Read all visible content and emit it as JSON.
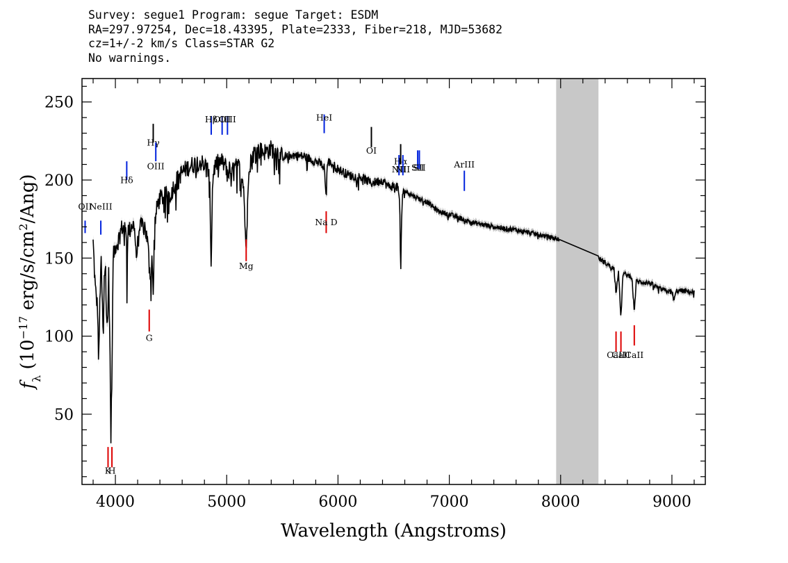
{
  "header": {
    "line1": "Survey: segue1 Program: segue Target: ESDM",
    "line2": "RA=297.97254, Dec=18.43395, Plate=2333, Fiber=218, MJD=53682",
    "line3": "cz=1+/-2 km/s Class=STAR G2",
    "line4": "No warnings."
  },
  "chart_data": {
    "type": "line",
    "xlabel": "Wavelength (Angstroms)",
    "ylabel": "f_λ (10^-17 erg/s/cm^2/Ang)",
    "xlim": [
      3700,
      9300
    ],
    "ylim": [
      5,
      265
    ],
    "x_ticks": [
      4000,
      5000,
      6000,
      7000,
      8000,
      9000
    ],
    "y_ticks": [
      50,
      100,
      150,
      200,
      250
    ],
    "grid": false,
    "masked_region": [
      7960,
      8340
    ],
    "colors": {
      "spectrum": "#000000",
      "error": "#b8b8b8",
      "mask": "#c8c8c8",
      "emission": "#0022dd",
      "absorption": "#dd0000",
      "sky": "#000000"
    },
    "series": [
      {
        "x": [
          3800,
          3820,
          3840,
          3850,
          3860,
          3870,
          3880,
          3890,
          3900,
          3910,
          3920,
          3930,
          3940,
          3950,
          3955,
          3960,
          3965,
          3970,
          3980,
          3990,
          4000,
          4020,
          4040,
          4060,
          4080,
          4100,
          4102,
          4110,
          4130,
          4150,
          4170,
          4190,
          4210,
          4230,
          4260,
          4290,
          4300,
          4310,
          4320,
          4330,
          4340,
          4350,
          4380,
          4400,
          4450,
          4500,
          4550,
          4600,
          4650,
          4700,
          4750,
          4800,
          4840,
          4850,
          4861,
          4870,
          4880,
          4900,
          4950,
          5000,
          5050,
          5100,
          5150,
          5170,
          5175,
          5183,
          5190,
          5200,
          5250,
          5300,
          5350,
          5400,
          5450,
          5500,
          5600,
          5700,
          5800,
          5850,
          5880,
          5890,
          5896,
          5900,
          5910,
          5950,
          6000,
          6100,
          6200,
          6300,
          6400,
          6450,
          6500,
          6540,
          6555,
          6563,
          6570,
          6580,
          6600,
          6700,
          6800,
          6900,
          7000,
          7200,
          7400,
          7600,
          7800,
          7990,
          8340,
          8400,
          8480,
          8498,
          8520,
          8542,
          8560,
          8640,
          8662,
          8680,
          8800,
          8900,
          9000,
          9020,
          9040,
          9100,
          9200
        ],
        "y": [
          160,
          130,
          118,
          80,
          120,
          150,
          128,
          100,
          140,
          145,
          118,
          110,
          140,
          100,
          65,
          35,
          60,
          80,
          150,
          155,
          158,
          160,
          165,
          170,
          168,
          165,
          120,
          168,
          168,
          172,
          170,
          150,
          168,
          170,
          172,
          160,
          150,
          145,
          130,
          155,
          125,
          170,
          185,
          188,
          190,
          192,
          200,
          205,
          208,
          210,
          212,
          210,
          205,
          190,
          142,
          190,
          205,
          210,
          212,
          208,
          205,
          210,
          200,
          162,
          158,
          165,
          195,
          210,
          218,
          219,
          218,
          220,
          218,
          215,
          216,
          215,
          212,
          210,
          208,
          190,
          192,
          205,
          212,
          210,
          207,
          203,
          202,
          198,
          200,
          196,
          196,
          195,
          182,
          138,
          170,
          192,
          193,
          189,
          186,
          180,
          178,
          173,
          170,
          168,
          165,
          162,
          150,
          147,
          143,
          128,
          142,
          111,
          140,
          138,
          116,
          135,
          134,
          130,
          128,
          123,
          129,
          129,
          128
        ],
        "errors": [
          3,
          3,
          3,
          3,
          3,
          3,
          3,
          3,
          3,
          3,
          3,
          3,
          3,
          3,
          3,
          3,
          3,
          3,
          3,
          3,
          2.5,
          2.5,
          2.5,
          2.5,
          2.5,
          2.5,
          2.5,
          2.5,
          2.5,
          2.5,
          2.5,
          2.5,
          2.5,
          2.5,
          2.5,
          2.5,
          2.5,
          2.5,
          2.5,
          2.5,
          2.5,
          2.5,
          2,
          2,
          2,
          2,
          2,
          2,
          2,
          2,
          2,
          2,
          2,
          2,
          2,
          2,
          2,
          2,
          2,
          2,
          2,
          2,
          2,
          2,
          2,
          2,
          2,
          2,
          2,
          2,
          2,
          2,
          2,
          2,
          2,
          2,
          2,
          2,
          2,
          2,
          2,
          2,
          2,
          2,
          2,
          2,
          2,
          2,
          2,
          2,
          2,
          2,
          2,
          2,
          2,
          2,
          2,
          2,
          2,
          2,
          2,
          2,
          2,
          2,
          2,
          2,
          2,
          2,
          2,
          2,
          2,
          2,
          2,
          2,
          2,
          2,
          2,
          2,
          2,
          2,
          2,
          2,
          2
        ]
      }
    ],
    "lines": [
      {
        "label": "OII",
        "x": 3728,
        "type": "emission",
        "text_y": 181,
        "y1": 174,
        "y2": 166
      },
      {
        "label": "NeIII",
        "x": 3869,
        "type": "emission",
        "text_y": 181,
        "y1": 174,
        "y2": 165
      },
      {
        "label": "Hδ",
        "x": 4102,
        "type": "emission",
        "text_y": 198,
        "y1": 212,
        "y2": 200
      },
      {
        "label": "Hγ",
        "x": 4340,
        "type": "emission",
        "text_y": 222,
        "y1": 236,
        "y2": 224,
        "color": "#000000"
      },
      {
        "label": "OIII",
        "x": 4363,
        "type": "emission",
        "text_y": 207,
        "y1": 224,
        "y2": 212
      },
      {
        "label": "Hβ",
        "x": 4861,
        "type": "emission",
        "text_y": 237,
        "y1": 241,
        "y2": 229
      },
      {
        "label": "OIII",
        "x": 4959,
        "type": "emission",
        "text_y": 237,
        "y1": 241,
        "y2": 229
      },
      {
        "label": "OIII",
        "x": 5007,
        "type": "emission",
        "text_y": 237,
        "y1": 241,
        "y2": 229
      },
      {
        "label": "HeI",
        "x": 5876,
        "type": "emission",
        "text_y": 238,
        "y1": 242,
        "y2": 230
      },
      {
        "label": "OI",
        "x": 6300,
        "type": "sky",
        "text_y": 217,
        "y1": 234,
        "y2": 221
      },
      {
        "label": "NII",
        "x": 6548,
        "type": "emission",
        "text_y": 205,
        "y1": 216,
        "y2": 203
      },
      {
        "label": "Hα",
        "x": 6563,
        "type": "emission",
        "text_y": 210,
        "y1": 223,
        "y2": 210,
        "color": "#000000"
      },
      {
        "label": "NII",
        "x": 6583,
        "type": "emission",
        "text_y": 205,
        "y1": 216,
        "y2": 203
      },
      {
        "label": "SII",
        "x": 6716,
        "type": "emission",
        "text_y": 206,
        "y1": 219,
        "y2": 207
      },
      {
        "label": "SII",
        "x": 6731,
        "type": "emission",
        "text_y": 206,
        "y1": 219,
        "y2": 207
      },
      {
        "label": "ArIII",
        "x": 7135,
        "type": "emission",
        "text_y": 208,
        "y1": 206,
        "y2": 193
      },
      {
        "label": "K",
        "x": 3934,
        "type": "absorption",
        "text_y": 12,
        "y1": 29,
        "y2": 16
      },
      {
        "label": "H",
        "x": 3969,
        "type": "absorption",
        "text_y": 12,
        "y1": 29,
        "y2": 16
      },
      {
        "label": "G",
        "x": 4304,
        "type": "absorption",
        "text_y": 97,
        "y1": 117,
        "y2": 103
      },
      {
        "label": "Mg",
        "x": 5175,
        "type": "absorption",
        "text_y": 143,
        "y1": 162,
        "y2": 148
      },
      {
        "label": "Na D",
        "x": 5894,
        "type": "absorption",
        "text_y": 171,
        "y1": 180,
        "y2": 166
      },
      {
        "label": "CaII",
        "x": 8498,
        "type": "absorption",
        "text_y": 86,
        "y1": 103,
        "y2": 90
      },
      {
        "label": "CaII",
        "x": 8542,
        "type": "absorption",
        "text_y": 86,
        "y1": 103,
        "y2": 90
      },
      {
        "label": "CaII",
        "x": 8662,
        "type": "absorption",
        "text_y": 86,
        "y1": 107,
        "y2": 94
      }
    ]
  }
}
